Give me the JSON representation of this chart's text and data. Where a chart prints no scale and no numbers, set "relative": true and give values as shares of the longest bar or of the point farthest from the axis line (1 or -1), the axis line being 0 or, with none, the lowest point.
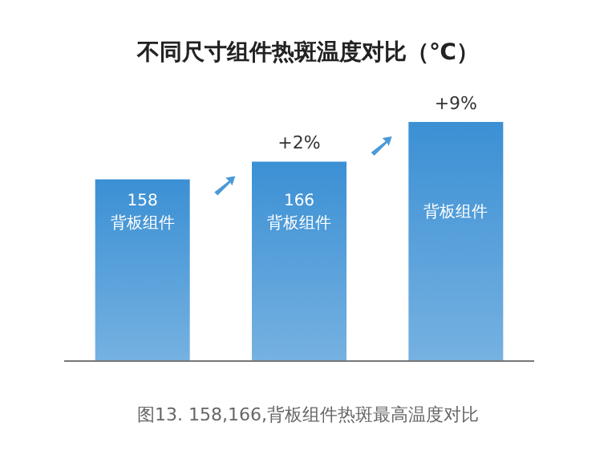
{
  "chart_data": {
    "type": "bar",
    "title": "不同尺寸组件热斑温度对比（℃）",
    "categories": [
      "158\n背板组件",
      "166\n背板组件",
      "背板组件"
    ],
    "values": [
      0.76,
      0.834,
      1
    ],
    "relative": true,
    "color": "#3b90d4",
    "annotations": [
      {
        "text": "+2%",
        "x": "166\n背板组件",
        "y": 0.834
      },
      {
        "text": "+9%",
        "x": "背板组件",
        "y": 1
      },
      "图13. 158,166,背板组件热斑最高温度对比"
    ]
  }
}
